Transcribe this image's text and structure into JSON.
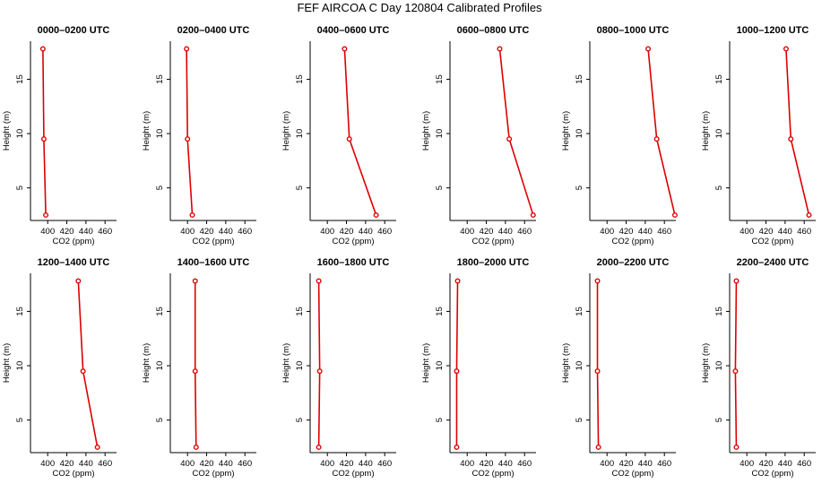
{
  "title": "FEF AIRCOA C  Day 120804  Calibrated Profiles",
  "colors": {
    "series": "#dd0000",
    "axis": "#000000"
  },
  "chart_data": [
    {
      "type": "line",
      "title": "0000–0200 UTC",
      "xlabel": "CO2 (ppm)",
      "ylabel": "Height (m)",
      "xlim": [
        382,
        472
      ],
      "ylim": [
        2,
        18.5
      ],
      "xticks": [
        "400",
        "420",
        "440",
        "460"
      ],
      "yticks": [
        "5",
        "10",
        "15"
      ],
      "series": [
        {
          "name": "CO2",
          "x": [
            395,
            396,
            398
          ],
          "y": [
            17.8,
            9.5,
            2.5
          ]
        }
      ]
    },
    {
      "type": "line",
      "title": "0200–0400 UTC",
      "xlabel": "CO2 (ppm)",
      "ylabel": "Height (m)",
      "xlim": [
        382,
        472
      ],
      "ylim": [
        2,
        18.5
      ],
      "xticks": [
        "400",
        "420",
        "440",
        "460"
      ],
      "yticks": [
        "5",
        "10",
        "15"
      ],
      "series": [
        {
          "name": "CO2",
          "x": [
            399,
            400,
            405
          ],
          "y": [
            17.8,
            9.5,
            2.5
          ]
        }
      ]
    },
    {
      "type": "line",
      "title": "0400–0600 UTC",
      "xlabel": "CO2 (ppm)",
      "ylabel": "Height (m)",
      "xlim": [
        382,
        472
      ],
      "ylim": [
        2,
        18.5
      ],
      "xticks": [
        "400",
        "420",
        "440",
        "460"
      ],
      "yticks": [
        "5",
        "10",
        "15"
      ],
      "series": [
        {
          "name": "CO2",
          "x": [
            418,
            423,
            451
          ],
          "y": [
            17.8,
            9.5,
            2.5
          ]
        }
      ]
    },
    {
      "type": "line",
      "title": "0600–0800 UTC",
      "xlabel": "CO2 (ppm)",
      "ylabel": "Height (m)",
      "xlim": [
        382,
        472
      ],
      "ylim": [
        2,
        18.5
      ],
      "xticks": [
        "400",
        "420",
        "440",
        "460"
      ],
      "yticks": [
        "5",
        "10",
        "15"
      ],
      "series": [
        {
          "name": "CO2",
          "x": [
            434,
            444,
            469
          ],
          "y": [
            17.8,
            9.5,
            2.5
          ]
        }
      ]
    },
    {
      "type": "line",
      "title": "0800–1000 UTC",
      "xlabel": "CO2 (ppm)",
      "ylabel": "Height (m)",
      "xlim": [
        382,
        472
      ],
      "ylim": [
        2,
        18.5
      ],
      "xticks": [
        "400",
        "420",
        "440",
        "460"
      ],
      "yticks": [
        "5",
        "10",
        "15"
      ],
      "series": [
        {
          "name": "CO2",
          "x": [
            443,
            452,
            471
          ],
          "y": [
            17.8,
            9.5,
            2.5
          ]
        }
      ]
    },
    {
      "type": "line",
      "title": "1000–1200 UTC",
      "xlabel": "CO2 (ppm)",
      "ylabel": "Height (m)",
      "xlim": [
        382,
        472
      ],
      "ylim": [
        2,
        18.5
      ],
      "xticks": [
        "400",
        "420",
        "440",
        "460"
      ],
      "yticks": [
        "5",
        "10",
        "15"
      ],
      "series": [
        {
          "name": "CO2",
          "x": [
            441,
            446,
            465
          ],
          "y": [
            17.8,
            9.5,
            2.5
          ]
        }
      ]
    },
    {
      "type": "line",
      "title": "1200–1400 UTC",
      "xlabel": "CO2 (ppm)",
      "ylabel": "Height (m)",
      "xlim": [
        382,
        472
      ],
      "ylim": [
        2,
        18.5
      ],
      "xticks": [
        "400",
        "420",
        "440",
        "460"
      ],
      "yticks": [
        "5",
        "10",
        "15"
      ],
      "series": [
        {
          "name": "CO2",
          "x": [
            432,
            437,
            452
          ],
          "y": [
            17.8,
            9.5,
            2.5
          ]
        }
      ]
    },
    {
      "type": "line",
      "title": "1400–1600 UTC",
      "xlabel": "CO2 (ppm)",
      "ylabel": "Height (m)",
      "xlim": [
        382,
        472
      ],
      "ylim": [
        2,
        18.5
      ],
      "xticks": [
        "400",
        "420",
        "440",
        "460"
      ],
      "yticks": [
        "5",
        "10",
        "15"
      ],
      "series": [
        {
          "name": "CO2",
          "x": [
            408,
            408,
            409
          ],
          "y": [
            17.8,
            9.5,
            2.5
          ]
        }
      ]
    },
    {
      "type": "line",
      "title": "1600–1800 UTC",
      "xlabel": "CO2 (ppm)",
      "ylabel": "Height (m)",
      "xlim": [
        382,
        472
      ],
      "ylim": [
        2,
        18.5
      ],
      "xticks": [
        "400",
        "420",
        "440",
        "460"
      ],
      "yticks": [
        "5",
        "10",
        "15"
      ],
      "series": [
        {
          "name": "CO2",
          "x": [
            391,
            392,
            391
          ],
          "y": [
            17.8,
            9.5,
            2.5
          ]
        }
      ]
    },
    {
      "type": "line",
      "title": "1800–2000 UTC",
      "xlabel": "CO2 (ppm)",
      "ylabel": "Height (m)",
      "xlim": [
        382,
        472
      ],
      "ylim": [
        2,
        18.5
      ],
      "xticks": [
        "400",
        "420",
        "440",
        "460"
      ],
      "yticks": [
        "5",
        "10",
        "15"
      ],
      "series": [
        {
          "name": "CO2",
          "x": [
            390,
            389,
            389
          ],
          "y": [
            17.8,
            9.5,
            2.5
          ]
        }
      ]
    },
    {
      "type": "line",
      "title": "2000–2200 UTC",
      "xlabel": "CO2 (ppm)",
      "ylabel": "Height (m)",
      "xlim": [
        382,
        472
      ],
      "ylim": [
        2,
        18.5
      ],
      "xticks": [
        "400",
        "420",
        "440",
        "460"
      ],
      "yticks": [
        "5",
        "10",
        "15"
      ],
      "series": [
        {
          "name": "CO2",
          "x": [
            390,
            390,
            391
          ],
          "y": [
            17.8,
            9.5,
            2.5
          ]
        }
      ]
    },
    {
      "type": "line",
      "title": "2200–2400 UTC",
      "xlabel": "CO2 (ppm)",
      "ylabel": "Height (m)",
      "xlim": [
        382,
        472
      ],
      "ylim": [
        2,
        18.5
      ],
      "xticks": [
        "400",
        "420",
        "440",
        "460"
      ],
      "yticks": [
        "5",
        "10",
        "15"
      ],
      "series": [
        {
          "name": "CO2",
          "x": [
            389,
            388,
            389
          ],
          "y": [
            17.8,
            9.5,
            2.5
          ]
        }
      ]
    }
  ]
}
